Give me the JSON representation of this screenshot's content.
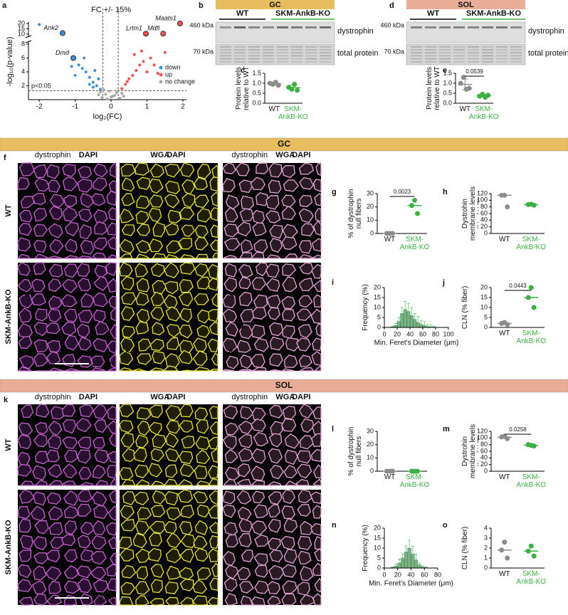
{
  "chart_data": [
    {
      "type": "scatter",
      "panel": "a",
      "xlabel": "log₂(FC)",
      "ylabel": "-log₁₀(p-value)",
      "xlim": [
        -2.3,
        2.1
      ],
      "xticks": [
        -2,
        -1,
        0,
        1,
        2
      ],
      "ylim": [
        0,
        20
      ],
      "yticks": [
        2,
        4,
        6,
        8,
        10,
        15,
        20
      ],
      "y_break": [
        8,
        10
      ],
      "fc_annotation": "FC +/- 15%",
      "fc_lines": [
        -0.23,
        0.2
      ],
      "p_annotation": "p<0.05",
      "p_line": 1.3,
      "series": [
        {
          "name": "down",
          "color": "#3d8fdc",
          "x": [
            -0.3,
            -0.4,
            -0.5,
            -0.6,
            -0.7,
            -0.8,
            -0.9,
            -1.0,
            -0.5,
            -0.35,
            -0.6,
            -0.45,
            -1.1,
            -0.75,
            -2.0
          ],
          "values": [
            1.5,
            2,
            2.5,
            3.2,
            4,
            4.5,
            5,
            3.5,
            1.8,
            3,
            2.2,
            4.2,
            4.8,
            6,
            19
          ]
        },
        {
          "name": "up",
          "color": "#f05252",
          "x": [
            0.3,
            0.4,
            0.5,
            0.6,
            0.7,
            0.8,
            0.9,
            1.0,
            1.1,
            1.2,
            0.45,
            0.65,
            0.85,
            1.5,
            1.3
          ],
          "values": [
            1.6,
            2.2,
            3,
            3.5,
            4.2,
            5,
            5.5,
            4,
            6,
            5,
            2.6,
            6.5,
            7,
            6.8,
            3.8
          ]
        },
        {
          "name": "no change",
          "color": "#a8a8a8",
          "x": [
            -0.25,
            -0.15,
            -0.05,
            0.05,
            0.15,
            0.25,
            -0.3,
            0.3,
            -0.1,
            0.1,
            -0.2,
            0.2,
            0,
            -0.35,
            0.35
          ],
          "values": [
            0.3,
            0.8,
            1.2,
            0.5,
            1.0,
            0.2,
            1.1,
            0.9,
            0.1,
            0.6,
            1.4,
            1.3,
            0.4,
            0.7,
            0.5
          ]
        }
      ],
      "annotations": [
        {
          "label": "Ank2",
          "x": -1.35,
          "y": 11,
          "color": "#3d8fdc"
        },
        {
          "label": "Dmd",
          "x": -1.05,
          "y": 6,
          "color": "#3d8fdc"
        },
        {
          "label": "Lrtm1",
          "x": 0.97,
          "y": 10.5,
          "color": "#f05252"
        },
        {
          "label": "Maats1",
          "x": 1.92,
          "y": 20,
          "color": "#f05252"
        },
        {
          "label": "Mdfi",
          "x": 1.45,
          "y": 10.5,
          "color": "#f05252"
        }
      ]
    },
    {
      "type": "dot",
      "panel": "c",
      "ylabel": "Protein levels relative to WT",
      "categories": [
        "WT",
        "SKM-AnkB-KO"
      ],
      "colors": [
        "#8c8c8c",
        "#3cb043"
      ],
      "values": [
        [
          1.0,
          0.95,
          1.05,
          0.9
        ],
        [
          0.8,
          0.7,
          0.95,
          0.65
        ]
      ],
      "means": [
        0.98,
        0.78
      ],
      "errors": [
        0.07,
        0.13
      ],
      "ylim": [
        0,
        1.5
      ],
      "yticks": [
        {
          "value": 0,
          "label": "0.0"
        },
        {
          "value": 0.5,
          "label": "0.5"
        },
        {
          "value": 1,
          "label": "1.0"
        },
        {
          "value": 1.5,
          "label": "1.5"
        }
      ]
    },
    {
      "type": "dot",
      "panel": "e",
      "ylabel": "Protein levels relative to WT",
      "categories": [
        "WT",
        "SKM-AnkB-KO"
      ],
      "colors": [
        "#8c8c8c",
        "#3cb043"
      ],
      "values": [
        [
          1.0,
          1.3,
          0.7,
          0.75
        ],
        [
          0.35,
          0.45,
          0.3,
          0.4
        ]
      ],
      "means": [
        0.94,
        0.38
      ],
      "errors": [
        0.27,
        0.07
      ],
      "p_value": 0.0539,
      "ylim": [
        0,
        1.5
      ],
      "yticks": [
        {
          "value": 0,
          "label": "0.0"
        },
        {
          "value": 0.5,
          "label": "0.5"
        },
        {
          "value": 1,
          "label": "1.0"
        },
        {
          "value": 1.5,
          "label": "1.5"
        }
      ]
    },
    {
      "type": "dot",
      "panel": "g",
      "ylabel": "% of dystrophin null fibers",
      "categories": [
        "WT",
        "SKM-AnkB-KO"
      ],
      "colors": [
        "#8c8c8c",
        "#3cb043"
      ],
      "values": [
        [
          0,
          0,
          0
        ],
        [
          21,
          25,
          15
        ]
      ],
      "means": [
        0,
        21
      ],
      "p_value": 0.0023,
      "ylim": [
        0,
        30
      ],
      "yticks": [
        0,
        10,
        20,
        30
      ]
    },
    {
      "type": "dot",
      "panel": "h",
      "ylabel": "Dystrohin membrane levels (% of WT)",
      "categories": [
        "WT",
        "SKM-AnkB-KO"
      ],
      "colors": [
        "#8c8c8c",
        "#3cb043"
      ],
      "values": [
        [
          115,
          115,
          80
        ],
        [
          87,
          88,
          85
        ]
      ],
      "means": [
        115,
        87
      ],
      "ylim": [
        0,
        120
      ],
      "yticks": [
        0,
        20,
        40,
        60,
        80,
        100,
        120
      ]
    },
    {
      "type": "histogram",
      "panel": "i",
      "xlabel": "Min. Feret's Diameter (μm)",
      "ylabel": "Frequency (%)",
      "color": "#4c9a5a",
      "bins": [
        10,
        15,
        20,
        25,
        30,
        35,
        40,
        45,
        50,
        55,
        60,
        65,
        70,
        75,
        80
      ],
      "values": [
        0.3,
        1,
        3,
        7,
        9,
        8,
        6,
        4,
        2.5,
        1.5,
        1,
        0.5,
        0.3,
        0.2
      ],
      "errors": [
        0.3,
        1,
        2,
        3,
        4,
        4,
        4,
        3,
        3,
        2,
        2,
        1,
        1,
        0.5
      ],
      "xlim": [
        0,
        100
      ],
      "xticks": [
        0,
        20,
        40,
        60,
        80,
        100
      ],
      "ylim": [
        0,
        20
      ],
      "yticks": [
        0,
        5,
        10,
        15,
        20
      ]
    },
    {
      "type": "dot",
      "panel": "j",
      "ylabel": "CLN (% fiber)",
      "categories": [
        "WT",
        "SKM-AnkB-KO"
      ],
      "colors": [
        "#8c8c8c",
        "#3cb043"
      ],
      "values": [
        [
          2,
          2.5,
          1.5
        ],
        [
          15,
          20,
          10
        ]
      ],
      "means": [
        2,
        15
      ],
      "p_value": 0.0443,
      "ylim": [
        0,
        20
      ],
      "yticks": [
        0,
        5,
        10,
        15,
        20
      ]
    },
    {
      "type": "dot",
      "panel": "l",
      "ylabel": "% of dystrophin null fibers",
      "categories": [
        "WT",
        "SKM-AnkB-KO"
      ],
      "colors": [
        "#8c8c8c",
        "#3cb043"
      ],
      "values": [
        [
          0,
          0,
          0
        ],
        [
          0,
          0,
          0
        ]
      ],
      "means": [
        0,
        0
      ],
      "ylim": [
        0,
        30
      ],
      "yticks": [
        0,
        10,
        20,
        30
      ]
    },
    {
      "type": "dot",
      "panel": "m",
      "ylabel": "Dystrohin membrane levels (% of WT)",
      "categories": [
        "WT",
        "SKM-AnkB-KO"
      ],
      "colors": [
        "#8c8c8c",
        "#3cb043"
      ],
      "values": [
        [
          103,
          105,
          98
        ],
        [
          80,
          78,
          76
        ]
      ],
      "means": [
        102,
        78
      ],
      "p_value": 0.0258,
      "ylim": [
        0,
        120
      ],
      "yticks": [
        0,
        20,
        40,
        60,
        80,
        100,
        120
      ]
    },
    {
      "type": "histogram",
      "panel": "n",
      "xlabel": "Min. Feret's Diameter (μm)",
      "ylabel": "Frequency (%)",
      "color": "#4c9a5a",
      "bins": [
        10,
        15,
        20,
        25,
        30,
        35,
        40,
        45,
        50,
        55,
        60,
        65
      ],
      "values": [
        0.3,
        1,
        2.5,
        5,
        8,
        10,
        7,
        4,
        1.5,
        0.5,
        0.2
      ],
      "errors": [
        0.3,
        1,
        2,
        2,
        3,
        4,
        4,
        3,
        1,
        0.5,
        0.3
      ],
      "xlim": [
        0,
        80
      ],
      "xticks": [
        0,
        20,
        40,
        60,
        80
      ],
      "ylim": [
        0,
        20
      ],
      "yticks": [
        0,
        5,
        10,
        15,
        20
      ]
    },
    {
      "type": "dot",
      "panel": "o",
      "ylabel": "CLN (% fiber)",
      "categories": [
        "WT",
        "SKM-AnkB-KO"
      ],
      "colors": [
        "#8c8c8c",
        "#3cb043"
      ],
      "values": [
        [
          1.8,
          2.6,
          1.0
        ],
        [
          1.7,
          2.2,
          1.2
        ]
      ],
      "means": [
        1.8,
        1.7
      ],
      "ylim": [
        0,
        4
      ],
      "yticks": [
        0,
        1,
        2,
        3,
        4
      ]
    }
  ],
  "blots": [
    {
      "panel": "b",
      "tissue": "GC",
      "tissue_color": "#e8bd5f",
      "groups": [
        "WT",
        "SKM-AnkB-KO"
      ],
      "group_colors": [
        "#000000",
        "#3cb043"
      ],
      "markers": [
        "460 kDa",
        "70 kDa"
      ],
      "bands": [
        "dystrophin",
        "total protein"
      ]
    },
    {
      "panel": "d",
      "tissue": "SOL",
      "tissue_color": "#eaad97",
      "groups": [
        "WT",
        "SKM-AnkB-KO"
      ],
      "group_colors": [
        "#000000",
        "#3cb043"
      ],
      "markers": [
        "460 kDa",
        "70 kDa"
      ],
      "bands": [
        "dystrophin",
        "total protein"
      ]
    }
  ],
  "sections": [
    {
      "tissue": "GC",
      "color": "#e8bd5f"
    },
    {
      "tissue": "SOL",
      "color": "#eaad97"
    }
  ],
  "micrographs": [
    {
      "panel": "f",
      "rows": [
        "WT",
        "SKM-AnkB-KO"
      ],
      "row_colors": [
        "#000000",
        "#3cb043"
      ],
      "scale_bar": "200 μm",
      "annotation": "*",
      "columns": [
        [
          {
            "text": "dystrophin",
            "color": "#b348b3"
          },
          {
            "text": "DAPI",
            "color": "#2a7f9e"
          }
        ],
        [
          {
            "text": "WGA",
            "color": "#8c8a22"
          },
          {
            "text": "DAPI",
            "color": "#2a7f9e"
          }
        ],
        [
          {
            "text": "dystrophin",
            "color": "#b348b3"
          },
          {
            "text": "WGA",
            "color": "#8c8a22"
          },
          {
            "text": "DAPI",
            "color": "#2a7f9e"
          }
        ]
      ]
    },
    {
      "panel": "k",
      "rows": [
        "WT",
        "SKM-AnkB-KO"
      ],
      "row_colors": [
        "#000000",
        "#3cb043"
      ],
      "scale_bar": "200 μm",
      "columns": [
        [
          {
            "text": "dystrophin",
            "color": "#b348b3"
          },
          {
            "text": "DAPI",
            "color": "#2a7f9e"
          }
        ],
        [
          {
            "text": "WGA",
            "color": "#8c8a22"
          },
          {
            "text": "DAPI",
            "color": "#2a7f9e"
          }
        ],
        [
          {
            "text": "dystrophin",
            "color": "#b348b3"
          },
          {
            "text": "WGA",
            "color": "#8c8a22"
          },
          {
            "text": "DAPI",
            "color": "#2a7f9e"
          }
        ]
      ]
    }
  ]
}
